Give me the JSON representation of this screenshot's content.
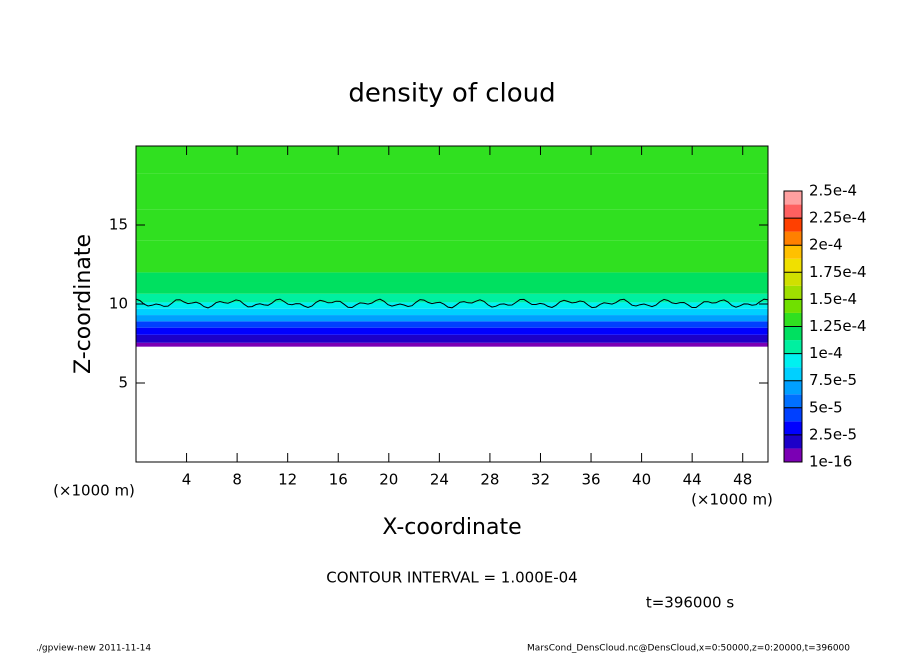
{
  "chart_data": {
    "type": "profile-contour",
    "title": "density of cloud",
    "x_label": "X-coordinate",
    "y_label": "Z-coordinate",
    "x_unit": "(×1000 m)",
    "y_unit": "(×1000 m)",
    "xlim": [
      0,
      50
    ],
    "xticks": [
      4,
      8,
      12,
      16,
      20,
      24,
      28,
      32,
      36,
      40,
      44,
      48
    ],
    "ylim": [
      0,
      20
    ],
    "yticks": [
      5,
      10,
      15
    ],
    "z": [
      7.3,
      7.8,
      8.3,
      8.7,
      9.1,
      9.5,
      9.9,
      10.3,
      11,
      13,
      15,
      17,
      19.5
    ],
    "values": [
      8e-06,
      2e-05,
      3e-05,
      4.5e-05,
      6.5e-05,
      8e-05,
      9.5e-05,
      0.00011,
      0.00012,
      0.00013,
      0.000135,
      0.00013,
      0.000135
    ],
    "colorbar": {
      "levels": [
        1e-16,
        1.25e-05,
        2.5e-05,
        3.75e-05,
        5e-05,
        6.25e-05,
        7.5e-05,
        8.75e-05,
        0.0001,
        0.0001125,
        0.000125,
        0.0001375,
        0.00015,
        0.0001625,
        0.000175,
        0.0001875,
        0.0002,
        0.0002125,
        0.000225,
        0.0002375,
        0.00025
      ],
      "colors": [
        "#7b00b4",
        "#1c00c8",
        "#0000ff",
        "#0040ff",
        "#0070ff",
        "#00a0ff",
        "#00d0ff",
        "#00f0f0",
        "#00f0a0",
        "#00e060",
        "#30e020",
        "#70e000",
        "#a0e000",
        "#d0e000",
        "#f0e000",
        "#ffc000",
        "#ff8000",
        "#ff4000",
        "#ff6060",
        "#ffa0a0"
      ],
      "ticks": [
        {
          "value": 1e-16,
          "label": "1e-16"
        },
        {
          "value": 2.5e-05,
          "label": "2.5e-5"
        },
        {
          "value": 5e-05,
          "label": "5e-5"
        },
        {
          "value": 7.5e-05,
          "label": "7.5e-5"
        },
        {
          "value": 0.0001,
          "label": "1e-4"
        },
        {
          "value": 0.000125,
          "label": "1.25e-4"
        },
        {
          "value": 0.00015,
          "label": "1.5e-4"
        },
        {
          "value": 0.000175,
          "label": "1.75e-4"
        },
        {
          "value": 0.0002,
          "label": "2e-4"
        },
        {
          "value": 0.000225,
          "label": "2.25e-4"
        },
        {
          "value": 0.00025,
          "label": "2.5e-4"
        }
      ]
    },
    "contour_note": "CONTOUR INTERVAL = 1.000E-04",
    "time_note": "t=396000 s",
    "footer_left": "./gpview-new  2011-11-14",
    "footer_right": "MarsCond_DensCloud.nc@DensCloud,x=0:50000,z=0:20000,t=396000"
  }
}
